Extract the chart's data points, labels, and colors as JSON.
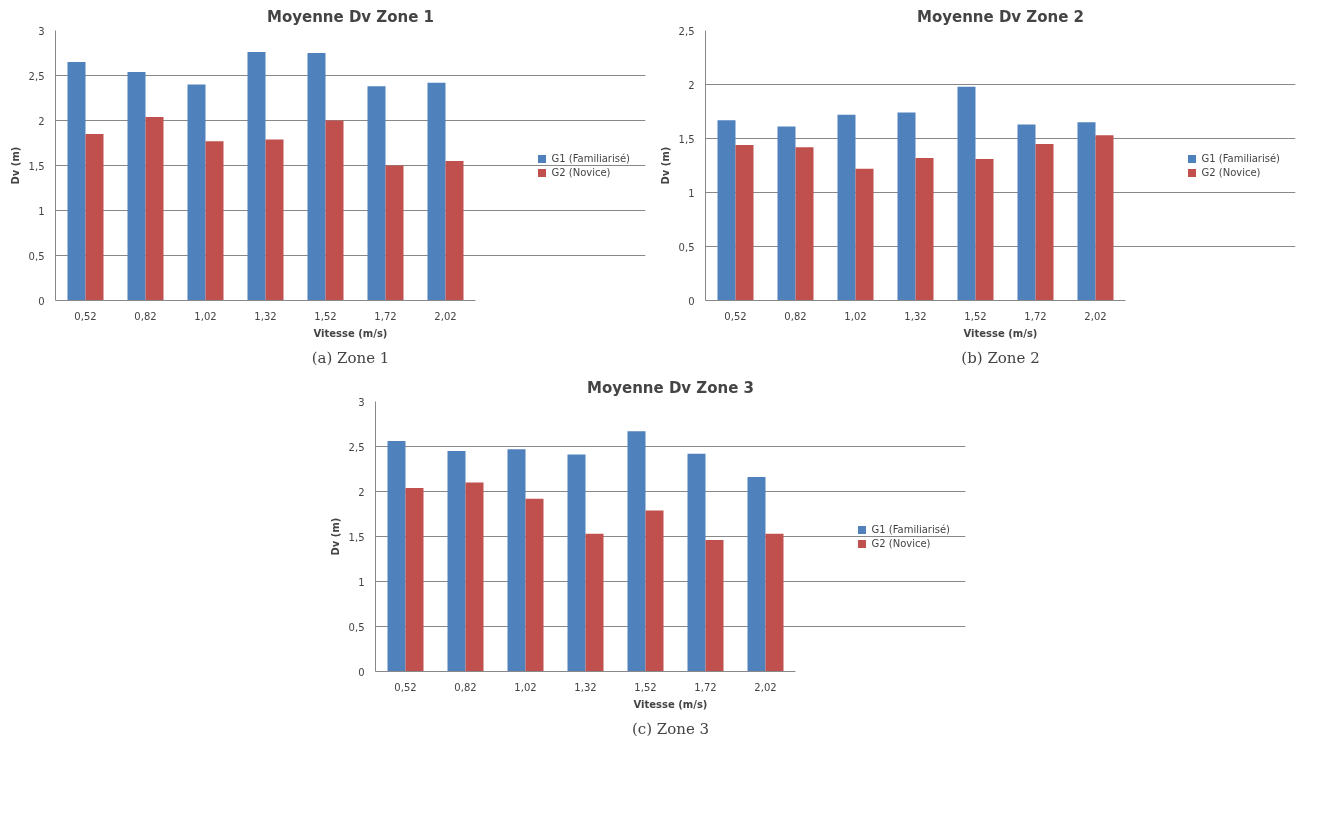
{
  "chart_data": [
    {
      "type": "bar",
      "title": "Moyenne Dv Zone 1",
      "xlabel": "Vitesse (m/s)",
      "ylabel": "Dv (m)",
      "categories": [
        "0,52",
        "0,82",
        "1,02",
        "1,32",
        "1,52",
        "1,72",
        "2,02"
      ],
      "series": [
        {
          "name": "G1 (Familiarisé)",
          "color": "#4f81bd",
          "values": [
            2.65,
            2.54,
            2.4,
            2.76,
            2.75,
            2.38,
            2.42
          ]
        },
        {
          "name": "G2 (Novice)",
          "color": "#c0504d",
          "values": [
            1.85,
            2.04,
            1.77,
            1.79,
            2.0,
            1.5,
            1.55
          ]
        }
      ],
      "ylim": [
        0,
        3
      ],
      "yticks": [
        0,
        {
          "value": 0.5,
          "label": "0,5"
        },
        1,
        {
          "value": 1.5,
          "label": "1,5"
        },
        2,
        {
          "value": 2.5,
          "label": "2,5"
        },
        3
      ],
      "grid": "y",
      "legend": "right",
      "annotations": [
        "(a) Zone 1"
      ]
    },
    {
      "type": "bar",
      "title": "Moyenne Dv Zone 2",
      "xlabel": "Vitesse (m/s)",
      "ylabel": "Dv (m)",
      "categories": [
        "0,52",
        "0,82",
        "1,02",
        "1,32",
        "1,52",
        "1,72",
        "2,02"
      ],
      "series": [
        {
          "name": "G1 (Familiarisé)",
          "color": "#4f81bd",
          "values": [
            1.67,
            1.61,
            1.72,
            1.74,
            1.98,
            1.63,
            1.65
          ]
        },
        {
          "name": "G2 (Novice)",
          "color": "#c0504d",
          "values": [
            1.44,
            1.42,
            1.22,
            1.32,
            1.31,
            1.45,
            1.53
          ]
        }
      ],
      "ylim": [
        0,
        2.5
      ],
      "yticks": [
        0,
        {
          "value": 0.5,
          "label": "0,5"
        },
        1,
        {
          "value": 1.5,
          "label": "1,5"
        },
        2,
        {
          "value": 2.5,
          "label": "2,5"
        }
      ],
      "grid": "y",
      "legend": "right",
      "annotations": [
        "(b) Zone 2"
      ]
    },
    {
      "type": "bar",
      "title": "Moyenne Dv Zone 3",
      "xlabel": "Vitesse (m/s)",
      "ylabel": "Dv (m)",
      "categories": [
        "0,52",
        "0,82",
        "1,02",
        "1,32",
        "1,52",
        "1,72",
        "2,02"
      ],
      "series": [
        {
          "name": "G1 (Familiarisé)",
          "color": "#4f81bd",
          "values": [
            2.56,
            2.45,
            2.47,
            2.41,
            2.67,
            2.42,
            2.16
          ]
        },
        {
          "name": "G2 (Novice)",
          "color": "#c0504d",
          "values": [
            2.04,
            2.1,
            1.92,
            1.53,
            1.79,
            1.46,
            1.53
          ]
        }
      ],
      "ylim": [
        0,
        3
      ],
      "yticks": [
        0,
        {
          "value": 0.5,
          "label": "0,5"
        },
        1,
        {
          "value": 1.5,
          "label": "1,5"
        },
        2,
        {
          "value": 2.5,
          "label": "2,5"
        },
        3
      ],
      "grid": "y",
      "legend": "right",
      "annotations": [
        "(c) Zone 3"
      ]
    }
  ]
}
